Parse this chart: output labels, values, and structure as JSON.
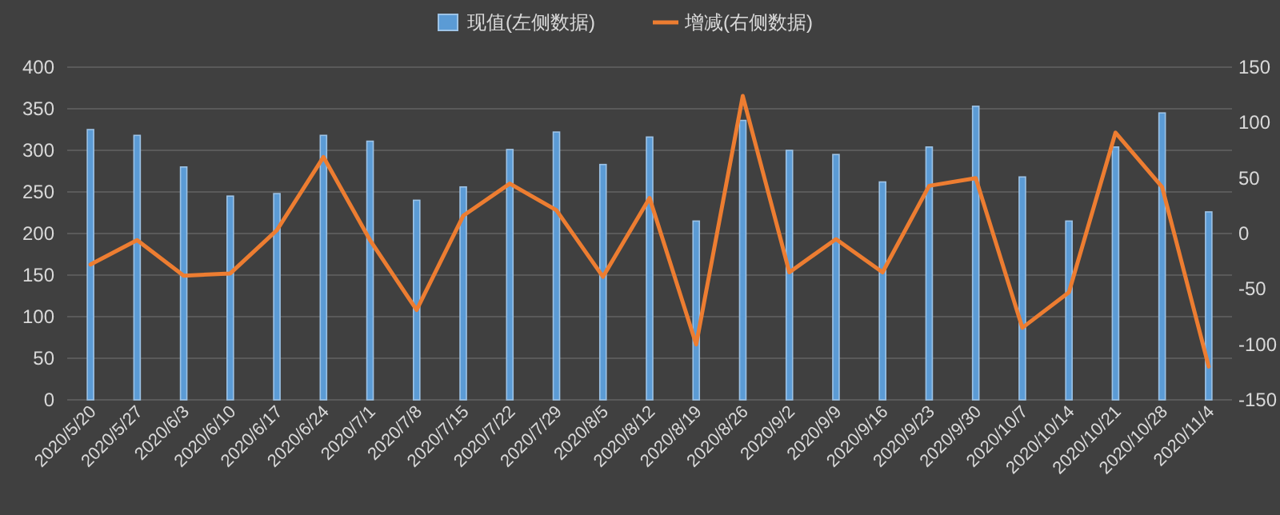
{
  "chart_data": {
    "type": "bar",
    "categories": [
      "2020/5/20",
      "2020/5/27",
      "2020/6/3",
      "2020/6/10",
      "2020/6/17",
      "2020/6/24",
      "2020/7/1",
      "2020/7/8",
      "2020/7/15",
      "2020/7/22",
      "2020/7/29",
      "2020/8/5",
      "2020/8/12",
      "2020/8/19",
      "2020/8/26",
      "2020/9/2",
      "2020/9/9",
      "2020/9/16",
      "2020/9/23",
      "2020/9/30",
      "2020/10/7",
      "2020/10/14",
      "2020/10/21",
      "2020/10/28",
      "2020/11/4"
    ],
    "series": [
      {
        "name": "现值(左侧数据)",
        "color": "#5b9bd5",
        "values": [
          325,
          318,
          280,
          245,
          248,
          318,
          311,
          240,
          256,
          301,
          322,
          283,
          316,
          215,
          336,
          300,
          295,
          262,
          304,
          353,
          268,
          215,
          304,
          345,
          226
        ]
      },
      {
        "name": "增减(右侧数据)",
        "type": "line",
        "axis": "y2",
        "color": "#ed7d31",
        "values": [
          -28,
          -6,
          -38,
          -36,
          3,
          69,
          -6,
          -69,
          16,
          45,
          21,
          -39,
          32,
          -100,
          124,
          -35,
          -5,
          -35,
          43,
          50,
          -85,
          -53,
          91,
          42,
          -120
        ]
      }
    ],
    "ylim": [
      0,
      400
    ],
    "yticks": [
      0,
      50,
      100,
      150,
      200,
      250,
      300,
      350,
      400
    ],
    "y2lim": [
      -150,
      150
    ],
    "y2ticks": [
      -150,
      -100,
      -50,
      0,
      50,
      100,
      150
    ],
    "grid": "y",
    "legend": "top"
  }
}
